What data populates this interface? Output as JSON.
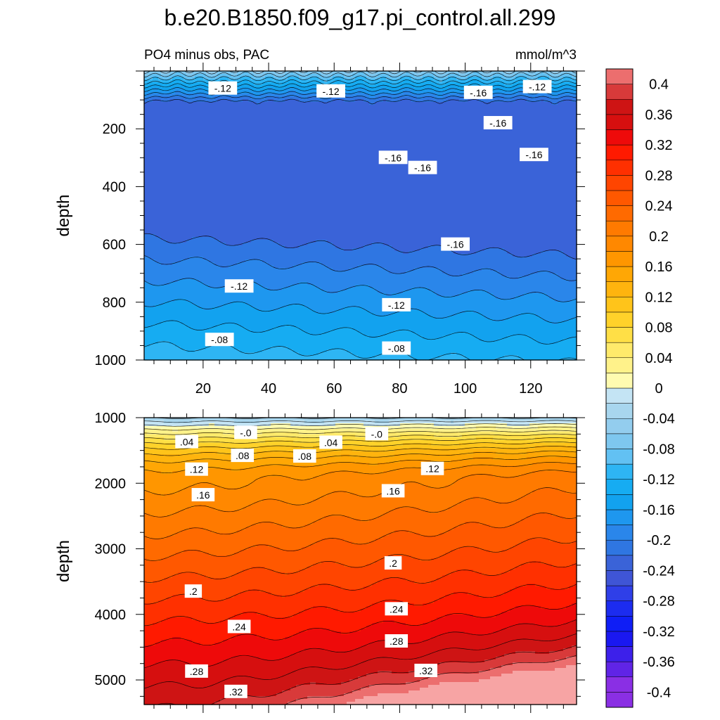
{
  "title": "b.e20.B1850.f09_g17.pi_control.all.299",
  "colors": {
    "neg": [
      "#c4e4f4",
      "#a8d6ee",
      "#93cdee",
      "#7ec7ef",
      "#62c1f3",
      "#2eb5f4",
      "#16acf2",
      "#12a2ef",
      "#1e97ef",
      "#2a86ea",
      "#2f76e2",
      "#3a63d8",
      "#3f55d6",
      "#2f3fe8",
      "#1c2cef",
      "#0f1ef6",
      "#1a18f0",
      "#3d20ea",
      "#6024e6",
      "#8a2fe4"
    ],
    "pos": [
      "#fffbb0",
      "#fff28a",
      "#ffea6b",
      "#ffdf46",
      "#ffd22a",
      "#ffc41a",
      "#ffb40e",
      "#ffa705",
      "#ff9600",
      "#ff8800",
      "#ff7a00",
      "#ff6a00",
      "#ff5800",
      "#ff4500",
      "#ff3000",
      "#ff1a00",
      "#ee0a0a",
      "#d60f0f",
      "#ce1414",
      "#d83a3a",
      "#ec6e6e",
      "#f7a4a4"
    ]
  },
  "chart_data": [
    {
      "type": "contour",
      "name": "upper-panel",
      "subtitle": "PO4 minus obs, PAC",
      "units": "mmol/m^3",
      "ylabel": "depth",
      "xlim": [
        2,
        134
      ],
      "ylim": [
        0,
        1000
      ],
      "yreversed": true,
      "xticks": [
        20,
        40,
        60,
        80,
        100,
        120
      ],
      "yticks": [
        200,
        400,
        600,
        800,
        1000
      ],
      "contour_labels": [
        {
          "text": "-.12",
          "x": 26,
          "y": 60
        },
        {
          "text": "-.12",
          "x": 59,
          "y": 70
        },
        {
          "text": "-.16",
          "x": 104,
          "y": 75
        },
        {
          "text": "-.12",
          "x": 122,
          "y": 55
        },
        {
          "text": "-.16",
          "x": 110,
          "y": 180
        },
        {
          "text": "-.16",
          "x": 78,
          "y": 300
        },
        {
          "text": "-.16",
          "x": 87,
          "y": 335
        },
        {
          "text": "-.16",
          "x": 121,
          "y": 290
        },
        {
          "text": "-.16",
          "x": 97,
          "y": 600
        },
        {
          "text": "-.12",
          "x": 31,
          "y": 745
        },
        {
          "text": "-.12",
          "x": 79,
          "y": 810
        },
        {
          "text": "-.08",
          "x": 25,
          "y": 930
        },
        {
          "text": "-.08",
          "x": 79,
          "y": 960
        }
      ]
    },
    {
      "type": "contour",
      "name": "lower-panel",
      "ylabel": "depth",
      "xlim": [
        2,
        134
      ],
      "ylim": [
        1000,
        5375
      ],
      "yreversed": true,
      "yticks": [
        1000,
        2000,
        3000,
        4000,
        5000
      ],
      "contour_labels": [
        {
          "text": "-.0",
          "x": 33,
          "y": 1230
        },
        {
          "text": "-.0",
          "x": 73,
          "y": 1250
        },
        {
          "text": ".04",
          "x": 15,
          "y": 1370
        },
        {
          "text": ".04",
          "x": 59,
          "y": 1380
        },
        {
          "text": ".08",
          "x": 32,
          "y": 1580
        },
        {
          "text": ".08",
          "x": 51,
          "y": 1590
        },
        {
          "text": ".12",
          "x": 18,
          "y": 1790
        },
        {
          "text": ".12",
          "x": 90,
          "y": 1780
        },
        {
          "text": ".16",
          "x": 20,
          "y": 2180
        },
        {
          "text": ".16",
          "x": 78,
          "y": 2120
        },
        {
          "text": ".2",
          "x": 78,
          "y": 3220
        },
        {
          "text": ".2",
          "x": 17,
          "y": 3650
        },
        {
          "text": ".24",
          "x": 79,
          "y": 3920
        },
        {
          "text": ".24",
          "x": 31,
          "y": 4190
        },
        {
          "text": ".28",
          "x": 79,
          "y": 4410
        },
        {
          "text": ".28",
          "x": 18,
          "y": 4870
        },
        {
          "text": ".32",
          "x": 88,
          "y": 4860
        },
        {
          "text": ".32",
          "x": 30,
          "y": 5180
        }
      ]
    },
    {
      "type": "colorbar",
      "name": "colorbar",
      "range": [
        -0.42,
        0.42
      ],
      "tick_labels": [
        "0.4",
        "0.36",
        "0.32",
        "0.28",
        "0.24",
        "0.2",
        "0.16",
        "0.12",
        "0.08",
        "0.04",
        "0",
        "-0.04",
        "-0.08",
        "-0.12",
        "-0.16",
        "-0.2",
        "-0.24",
        "-0.28",
        "-0.32",
        "-0.36",
        "-0.4"
      ]
    }
  ]
}
